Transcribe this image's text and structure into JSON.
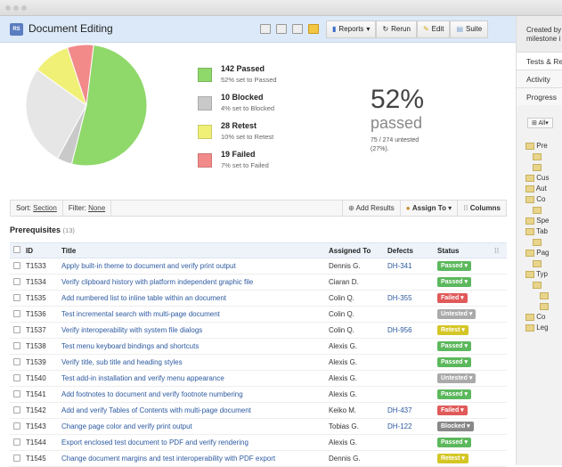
{
  "header": {
    "logo": "RS",
    "title": "Document Editing",
    "reports": "Reports",
    "rerun": "Rerun",
    "edit": "Edit",
    "suite": "Suite"
  },
  "sidebar": {
    "created": "Created by",
    "milestone": "milestone i",
    "tabs": [
      "Tests & Results",
      "Activity",
      "Progress"
    ],
    "filter": "All",
    "tree": [
      "Pre",
      "",
      "",
      "Cus",
      "Aut",
      "Co",
      "",
      "Spe",
      "Tab",
      "",
      "Pag",
      "",
      "Typ",
      "",
      "",
      "",
      "Co",
      "Leg"
    ]
  },
  "chart_data": {
    "type": "pie",
    "values": [
      {
        "label": "Passed",
        "count": 142,
        "percent": 52,
        "color": "#8fd86a"
      },
      {
        "label": "Blocked",
        "count": 10,
        "percent": 4,
        "color": "#c9c9c9"
      },
      {
        "label": "Untested",
        "count": 75,
        "percent": 27,
        "color": "#e6e6e6"
      },
      {
        "label": "Retest",
        "count": 28,
        "percent": 10,
        "color": "#f0f077"
      },
      {
        "label": "Failed",
        "count": 19,
        "percent": 7,
        "color": "#f28a8a"
      }
    ]
  },
  "legend": [
    {
      "title": "142 Passed",
      "sub": "52% set to Passed",
      "color": "#8fd86a"
    },
    {
      "title": "10 Blocked",
      "sub": "4% set to Blocked",
      "color": "#c9c9c9"
    },
    {
      "title": "28 Retest",
      "sub": "10% set to Retest",
      "color": "#f0f077"
    },
    {
      "title": "19 Failed",
      "sub": "7% set to Failed",
      "color": "#f28a8a"
    }
  ],
  "summary": {
    "percent": "52%",
    "label": "passed",
    "untested": "75 / 274 untested (27%)."
  },
  "toolbar": {
    "sort_label": "Sort:",
    "sort_value": "Section",
    "filter_label": "Filter:",
    "filter_value": "None",
    "add_results": "Add Results",
    "assign_to": "Assign To",
    "columns": "Columns"
  },
  "section": {
    "title": "Prerequisites",
    "count": "(13)"
  },
  "table": {
    "headers": [
      "ID",
      "Title",
      "Assigned To",
      "Defects",
      "Status"
    ],
    "rows": [
      [
        "T1533",
        "Apply built-in theme to document and verify print output",
        "Dennis G.",
        "DH-341",
        "Passed"
      ],
      [
        "T1534",
        "Verify clipboard history with platform independent graphic file",
        "Ciaran D.",
        "",
        "Passed"
      ],
      [
        "T1535",
        "Add numbered list to inline table within an document",
        "Colin Q.",
        "DH-355",
        "Failed"
      ],
      [
        "T1536",
        "Test incremental search with multi-page document",
        "Colin Q.",
        "",
        "Untested"
      ],
      [
        "T1537",
        "Verify interoperability with system file dialogs",
        "Colin Q.",
        "DH-956",
        "Retest"
      ],
      [
        "T1538",
        "Test menu keyboard bindings and shortcuts",
        "Alexis G.",
        "",
        "Passed"
      ],
      [
        "T1539",
        "Verify title, sub title and heading styles",
        "Alexis G.",
        "",
        "Passed"
      ],
      [
        "T1540",
        "Test add-in installation and verify menu appearance",
        "Alexis G.",
        "",
        "Untested"
      ],
      [
        "T1541",
        "Add footnotes to document and verify footnote numbering",
        "Alexis G.",
        "",
        "Passed"
      ],
      [
        "T1542",
        "Add and verify Tables of Contents with multi-page document",
        "Keiko M.",
        "DH-437",
        "Failed"
      ],
      [
        "T1543",
        "Change page color and verify print output",
        "Tobias G.",
        "DH-122",
        "Blocked"
      ],
      [
        "T1544",
        "Export enclosed test document to PDF and verify rendering",
        "Alexis G.",
        "",
        "Passed"
      ],
      [
        "T1545",
        "Change document margins and test interoperability with PDF export",
        "Dennis G.",
        "",
        "Retest"
      ]
    ]
  },
  "status_colors": {
    "Passed": "#5cb85c",
    "Failed": "#e05a5a",
    "Untested": "#aaaaaa",
    "Retest": "#d4c625",
    "Blocked": "#888888"
  }
}
